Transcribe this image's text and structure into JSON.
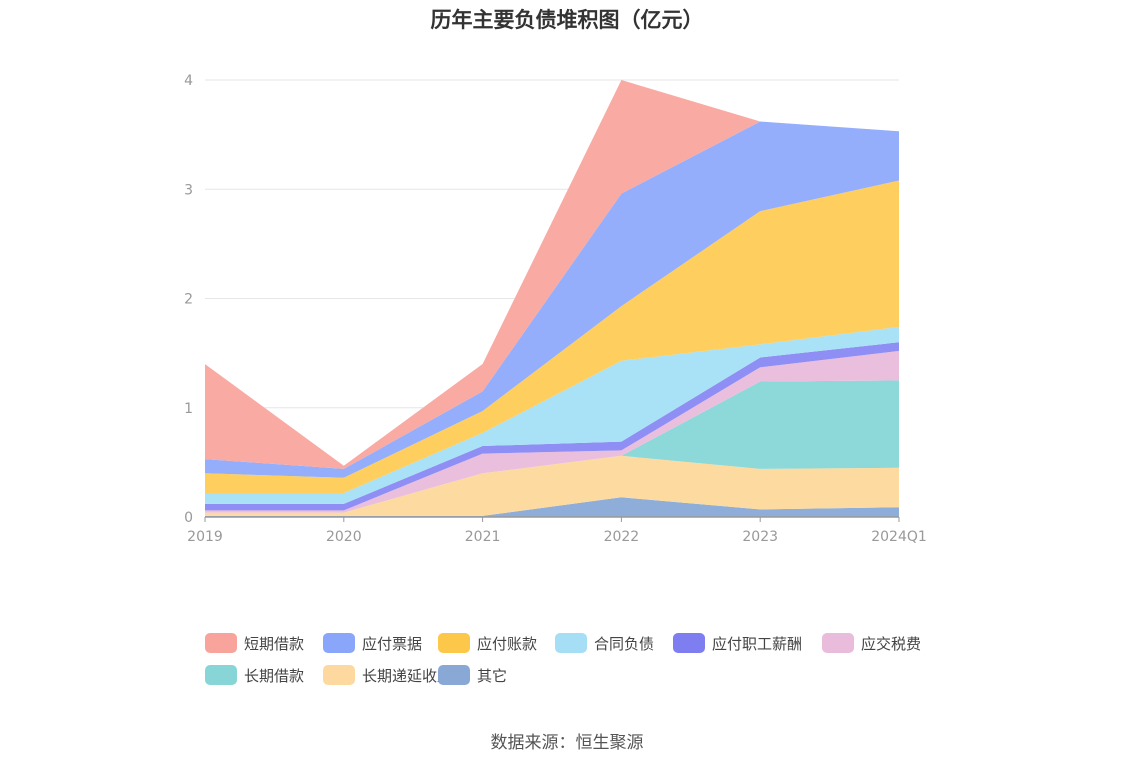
{
  "chart_data": {
    "type": "area",
    "stacked": true,
    "title": "历年主要负债堆积图（亿元）",
    "categories": [
      "2019",
      "2020",
      "2021",
      "2022",
      "2023",
      "2024Q1"
    ],
    "ylim": [
      0,
      4
    ],
    "yticks": [
      "0",
      "1",
      "2",
      "3",
      "4"
    ],
    "grid": true,
    "legend_position": "bottom",
    "series": [
      {
        "name": "其它",
        "color": "#8eadd9",
        "values": [
          0.01,
          0.01,
          0.01,
          0.18,
          0.07,
          0.09
        ]
      },
      {
        "name": "长期递延收益",
        "color": "#fddba0",
        "values": [
          0.03,
          0.03,
          0.39,
          0.38,
          0.37,
          0.36
        ]
      },
      {
        "name": "长期借款",
        "color": "#8dd8d8",
        "values": [
          0.0,
          0.0,
          0.0,
          0.0,
          0.8,
          0.8
        ]
      },
      {
        "name": "应交税费",
        "color": "#eabfdd",
        "values": [
          0.02,
          0.02,
          0.18,
          0.05,
          0.13,
          0.27
        ]
      },
      {
        "name": "应付职工薪酬",
        "color": "#8f8ef5",
        "values": [
          0.06,
          0.06,
          0.07,
          0.08,
          0.09,
          0.08
        ]
      },
      {
        "name": "合同负债",
        "color": "#a9e1f6",
        "values": [
          0.1,
          0.1,
          0.12,
          0.74,
          0.12,
          0.14
        ]
      },
      {
        "name": "应付账款",
        "color": "#fecf5f",
        "values": [
          0.18,
          0.14,
          0.2,
          0.5,
          1.22,
          1.34
        ]
      },
      {
        "name": "应付票据",
        "color": "#94aefc",
        "values": [
          0.13,
          0.08,
          0.18,
          1.03,
          0.82,
          0.45
        ]
      },
      {
        "name": "短期借款",
        "color": "#f8aaa3",
        "values": [
          0.87,
          0.03,
          0.25,
          1.04,
          0.0,
          0.0
        ]
      }
    ]
  },
  "legend": {
    "items": [
      {
        "name": "短期借款",
        "color": "#f8a39b"
      },
      {
        "name": "应付票据",
        "color": "#8aa6fa"
      },
      {
        "name": "应付账款",
        "color": "#fdc84a"
      },
      {
        "name": "合同负债",
        "color": "#a6dff5"
      },
      {
        "name": "应付职工薪酬",
        "color": "#7f7ef0"
      },
      {
        "name": "应交税费",
        "color": "#e9bcdc"
      },
      {
        "name": "长期借款",
        "color": "#87d5d6"
      },
      {
        "name": "长期递延收益",
        "color": "#fdd9a0"
      },
      {
        "name": "其它",
        "color": "#8aa8d6"
      }
    ]
  },
  "source": "数据来源：恒生聚源"
}
